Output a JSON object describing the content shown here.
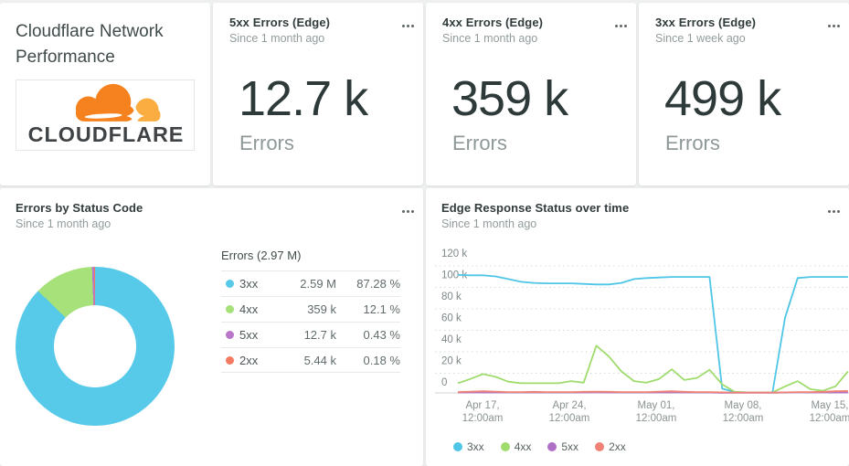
{
  "title_card": {
    "title": "Cloudflare Network Performance",
    "logo_text": "CLOUDFLARE",
    "logo_orange": "#f6821f",
    "logo_light_orange": "#fbad41"
  },
  "kpi_cards": [
    {
      "title": "5xx Errors (Edge)",
      "since": "Since 1 month ago",
      "value": "12.7 k",
      "unit_label": "Errors"
    },
    {
      "title": "4xx Errors (Edge)",
      "since": "Since 1 month ago",
      "value": "359 k",
      "unit_label": "Errors"
    },
    {
      "title": "3xx Errors (Edge)",
      "since": "Since 1 week ago",
      "value": "499 k",
      "unit_label": "Errors"
    }
  ],
  "donut_card": {
    "title": "Errors by Status Code",
    "since": "Since 1 month ago",
    "table_header": "Errors (2.97 M)"
  },
  "timeseries_card": {
    "title": "Edge Response Status over time",
    "since": "Since 1 month ago"
  },
  "chart_data": [
    {
      "type": "pie",
      "title": "Errors by Status Code",
      "timeframe": "Since 1 month ago",
      "total_label": "Errors (2.97 M)",
      "total": "2.97 M",
      "donut_hole": true,
      "slices": [
        {
          "label": "3xx",
          "value_label": "2.59 M",
          "pct": 87.28,
          "pct_label": "87.28 %",
          "color": "#57c9e9"
        },
        {
          "label": "4xx",
          "value_label": "359 k",
          "pct": 12.1,
          "pct_label": "12.1 %",
          "color": "#a6e17a"
        },
        {
          "label": "5xx",
          "value_label": "12.7 k",
          "pct": 0.43,
          "pct_label": "0.43 %",
          "color": "#ba76c9"
        },
        {
          "label": "2xx",
          "value_label": "5.44 k",
          "pct": 0.18,
          "pct_label": "0.18 %",
          "color": "#f37a60"
        }
      ]
    },
    {
      "type": "line",
      "title": "Edge Response Status over time",
      "timeframe": "Since 1 month ago",
      "unit": "k errors per interval",
      "ylim": [
        0,
        120
      ],
      "grid": "dotted horizontal",
      "legend_position": "bottom",
      "yticks": [
        "120 k",
        "100 k",
        "80 k",
        "60 k",
        "40 k",
        "20 k",
        "0"
      ],
      "xticks": [
        {
          "date": "Apr 17,",
          "time": "12:00am"
        },
        {
          "date": "Apr 24,",
          "time": "12:00am"
        },
        {
          "date": "May 01,",
          "time": "12:00am"
        },
        {
          "date": "May 08,",
          "time": "12:00am"
        },
        {
          "date": "May 15,",
          "time": "12:00am"
        }
      ],
      "x_start": "Apr 15",
      "x_step": "1 day",
      "series": [
        {
          "name": "3xx",
          "color": "#4fc6e7",
          "values": [
            110,
            109.5,
            109.5,
            108.5,
            106,
            103.5,
            102.5,
            102,
            102,
            102,
            101.5,
            101,
            101,
            102.5,
            106,
            107,
            107.5,
            108,
            108,
            108,
            108,
            4,
            0.8,
            0.5,
            0.5,
            0.5,
            70,
            107,
            108,
            108,
            108,
            108
          ]
        },
        {
          "name": "4xx",
          "color": "#9fdc6d",
          "values": [
            9,
            13,
            17.5,
            15,
            10.5,
            9,
            9,
            9,
            9,
            11,
            9.5,
            44,
            34,
            20,
            11,
            9.5,
            13,
            22,
            12,
            14,
            21.5,
            8,
            1,
            0.5,
            0.5,
            0.5,
            6,
            11,
            3.5,
            2,
            6,
            20
          ]
        },
        {
          "name": "5xx",
          "color": "#b06fc7",
          "values": [
            0.4,
            0.4,
            0.4,
            0.4,
            0.4,
            0.4,
            0.4,
            0.4,
            0.4,
            0.4,
            0.4,
            0.5,
            0.4,
            0.4,
            0.4,
            0.4,
            0.4,
            0.4,
            0.4,
            0.4,
            0.4,
            0.2,
            0.2,
            0.2,
            0.2,
            0.2,
            0.4,
            0.5,
            0.4,
            0.4,
            0.4,
            0.4
          ]
        },
        {
          "name": "2xx",
          "color": "#ef8274",
          "values": [
            0.8,
            1.2,
            1.5,
            1.2,
            0.8,
            0.8,
            1,
            0.8,
            0.8,
            0.8,
            1,
            1.2,
            1,
            0.8,
            0.8,
            0.8,
            1.2,
            1.5,
            1,
            0.8,
            0.8,
            0.5,
            0.3,
            0.3,
            0.3,
            0.3,
            0.5,
            0.8,
            0.8,
            1,
            1.5,
            1.8
          ]
        }
      ]
    }
  ]
}
